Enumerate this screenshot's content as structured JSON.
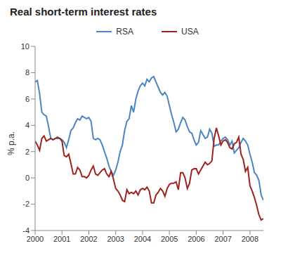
{
  "chart_data": {
    "type": "line",
    "title": "Real short-term interest rates",
    "y_label": "% p.a.",
    "legend": "top",
    "grid": false,
    "x": [
      2000,
      2000.083,
      2000.167,
      2000.25,
      2000.333,
      2000.417,
      2000.5,
      2000.583,
      2000.667,
      2000.75,
      2000.833,
      2000.917,
      2001,
      2001.083,
      2001.167,
      2001.25,
      2001.333,
      2001.417,
      2001.5,
      2001.583,
      2001.667,
      2001.75,
      2001.833,
      2001.917,
      2002,
      2002.083,
      2002.167,
      2002.25,
      2002.333,
      2002.417,
      2002.5,
      2002.583,
      2002.667,
      2002.75,
      2002.833,
      2002.917,
      2003,
      2003.083,
      2003.167,
      2003.25,
      2003.333,
      2003.417,
      2003.5,
      2003.583,
      2003.667,
      2003.75,
      2003.833,
      2003.917,
      2004,
      2004.083,
      2004.167,
      2004.25,
      2004.333,
      2004.417,
      2004.5,
      2004.583,
      2004.667,
      2004.75,
      2004.833,
      2004.917,
      2005,
      2005.083,
      2005.167,
      2005.25,
      2005.333,
      2005.417,
      2005.5,
      2005.583,
      2005.667,
      2005.75,
      2005.833,
      2005.917,
      2006,
      2006.083,
      2006.167,
      2006.25,
      2006.333,
      2006.417,
      2006.5,
      2006.583,
      2006.667,
      2006.75,
      2006.833,
      2006.917,
      2007,
      2007.083,
      2007.167,
      2007.25,
      2007.333,
      2007.417,
      2007.5,
      2007.583,
      2007.667,
      2007.75,
      2007.833,
      2007.917,
      2008,
      2008.083,
      2008.167,
      2008.25,
      2008.333,
      2008.417,
      2008.5
    ],
    "series": [
      {
        "name": "RSA",
        "color": "#4a86c0",
        "values": [
          7.3,
          7.4,
          6.4,
          5.0,
          4.8,
          4.7,
          3.9,
          3.0,
          2.9,
          3.0,
          3.0,
          3.0,
          2.9,
          2.7,
          2.3,
          2.9,
          3.6,
          3.8,
          4.2,
          4.5,
          4.4,
          4.7,
          4.6,
          4.5,
          4.6,
          4.3,
          3.0,
          2.9,
          3.0,
          2.9,
          2.5,
          2.0,
          1.5,
          0.9,
          0.5,
          0.2,
          0.6,
          1.2,
          2.0,
          2.5,
          3.6,
          4.3,
          4.5,
          5.5,
          5.0,
          6.0,
          6.6,
          7.0,
          7.2,
          7.0,
          7.5,
          7.3,
          7.6,
          7.7,
          7.3,
          6.9,
          6.5,
          6.3,
          6.5,
          6.2,
          5.5,
          4.8,
          4.2,
          3.5,
          3.7,
          4.2,
          4.6,
          4.4,
          3.9,
          3.5,
          3.4,
          2.9,
          2.5,
          2.7,
          3.6,
          3.3,
          3.0,
          3.1,
          3.7,
          3.4,
          2.4,
          2.5,
          2.5,
          2.8,
          3.0,
          3.1,
          2.9,
          2.5,
          2.8,
          1.9,
          2.1,
          2.3,
          2.7,
          3.0,
          2.8,
          2.5,
          1.8,
          1.2,
          0.4,
          0.2,
          -0.2,
          -1.3,
          -1.7
        ]
      },
      {
        "name": "USA",
        "color": "#a0221e",
        "values": [
          2.8,
          2.5,
          2.1,
          3.0,
          3.2,
          2.8,
          2.9,
          3.0,
          2.9,
          3.0,
          3.1,
          3.0,
          2.8,
          1.7,
          1.6,
          1.8,
          1.1,
          0.3,
          0.3,
          0.8,
          0.6,
          0.1,
          0.1,
          0.0,
          0.2,
          0.6,
          0.9,
          0.3,
          0.2,
          0.4,
          0.6,
          0.7,
          0.3,
          0.1,
          0.5,
          -0.1,
          -0.8,
          -1.0,
          -1.3,
          -1.7,
          -1.8,
          -0.9,
          -1.2,
          -1.1,
          -1.2,
          -1.0,
          -1.3,
          -0.9,
          -0.8,
          -0.9,
          -0.7,
          -1.0,
          -1.9,
          -1.9,
          -1.3,
          -1.1,
          -0.8,
          -1.0,
          -1.4,
          -0.8,
          -0.5,
          -0.4,
          -0.4,
          -0.3,
          -0.9,
          0.4,
          0.4,
          0.0,
          -0.8,
          -0.4,
          0.6,
          0.7,
          0.7,
          0.3,
          0.6,
          0.9,
          1.2,
          1.0,
          1.1,
          1.3,
          3.0,
          3.8,
          3.2,
          2.5,
          2.8,
          2.9,
          2.7,
          2.3,
          2.2,
          2.6,
          2.7,
          3.1,
          1.8,
          1.4,
          0.5,
          0.8,
          -0.6,
          -1.0,
          -1.5,
          -2.1,
          -2.8,
          -3.2,
          -3.1
        ]
      }
    ],
    "xlim": [
      2000,
      2008.5
    ],
    "xticks": [
      2000,
      2001,
      2002,
      2003,
      2004,
      2005,
      2006,
      2007,
      2008
    ],
    "ylim": [
      -4,
      10
    ],
    "yticks": [
      -4,
      -2,
      0,
      2,
      4,
      6,
      8,
      10
    ]
  }
}
